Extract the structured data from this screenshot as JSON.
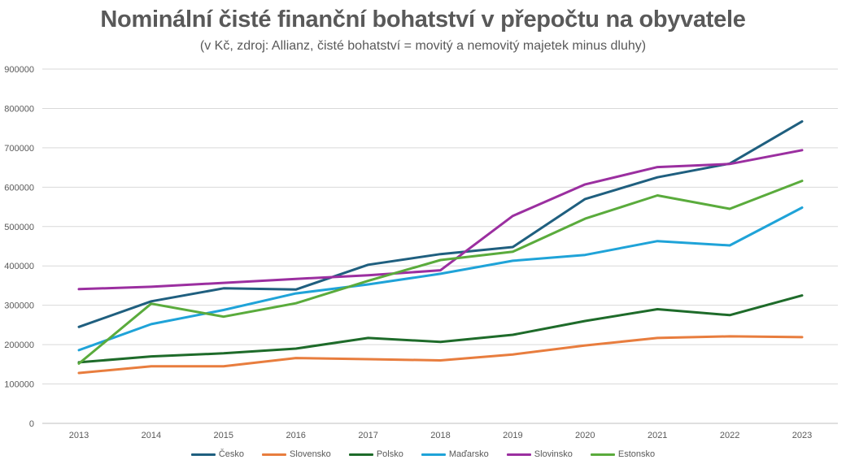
{
  "chart_data": {
    "type": "line",
    "title": "Nominální čisté finanční bohatství v přepočtu na obyvatele",
    "subtitle": "(v Kč, zdroj: Allianz, čisté bohatství = movitý a nemovitý majetek minus dluhy)",
    "categories": [
      "2013",
      "2014",
      "2015",
      "2016",
      "2017",
      "2018",
      "2019",
      "2020",
      "2021",
      "2022",
      "2023"
    ],
    "y_ticks": [
      "0",
      "100000",
      "200000",
      "300000",
      "400000",
      "500000",
      "600000",
      "700000",
      "800000",
      "900000"
    ],
    "ylim": [
      0,
      900000
    ],
    "grid": true,
    "legend_position": "bottom",
    "series": [
      {
        "name": "Česko",
        "color": "#1f5f7f",
        "values": [
          245000,
          310000,
          343000,
          340000,
          403000,
          430000,
          448000,
          570000,
          625000,
          660000,
          767000
        ]
      },
      {
        "name": "Slovensko",
        "color": "#e87d3e",
        "values": [
          128000,
          145000,
          145000,
          166000,
          163000,
          160000,
          175000,
          198000,
          217000,
          221000,
          219000
        ]
      },
      {
        "name": "Polsko",
        "color": "#1e6b2a",
        "values": [
          155000,
          170000,
          178000,
          190000,
          217000,
          207000,
          225000,
          260000,
          290000,
          275000,
          325000
        ]
      },
      {
        "name": "Maďarsko",
        "color": "#1fa3d8",
        "values": [
          186000,
          252000,
          288000,
          330000,
          353000,
          380000,
          413000,
          428000,
          463000,
          452000,
          548000
        ]
      },
      {
        "name": "Slovinsko",
        "color": "#9b2fa0",
        "values": [
          341000,
          347000,
          357000,
          367000,
          376000,
          389000,
          527000,
          607000,
          651000,
          659000,
          694000
        ]
      },
      {
        "name": "Estonsko",
        "color": "#5aab3c",
        "values": [
          152000,
          304000,
          271000,
          305000,
          362000,
          415000,
          436000,
          520000,
          579000,
          545000,
          616000
        ]
      }
    ]
  }
}
